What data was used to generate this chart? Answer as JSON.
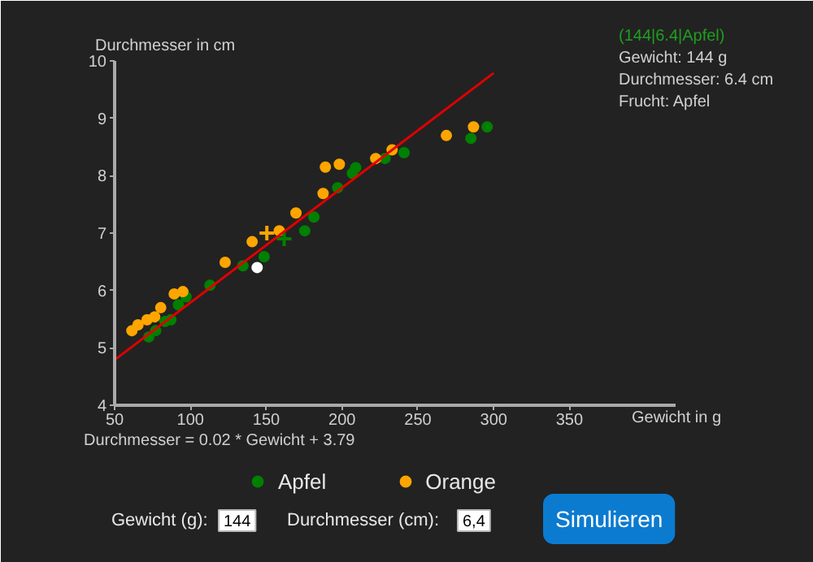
{
  "chart_data": {
    "type": "scatter",
    "xlabel": "Gewicht in g",
    "ylabel": "Durchmesser in cm",
    "xlim": [
      50,
      420
    ],
    "ylim": [
      4,
      10
    ],
    "xticks": [
      50,
      100,
      150,
      200,
      250,
      300,
      350
    ],
    "yticks": [
      4,
      5,
      6,
      7,
      8,
      9,
      10
    ],
    "grid": false,
    "legend": "bottom",
    "marker": "circle",
    "series": [
      {
        "name": "Apfel",
        "color": "#008000",
        "x": [
          72.5,
          77.1,
          83.2,
          87.1,
          92.1,
          97.1,
          112.9,
          134.6,
          148.6,
          175.4,
          181.4,
          197.1,
          206.8,
          209,
          228.3,
          240.9,
          285,
          295.7
        ],
        "values": [
          5.19,
          5.3,
          5.46,
          5.49,
          5.75,
          5.89,
          6.09,
          6.43,
          6.59,
          7.04,
          7.28,
          7.79,
          8.04,
          8.14,
          8.3,
          8.4,
          8.65,
          8.85
        ]
      },
      {
        "name": "Orange",
        "color": "#ffa500",
        "x": [
          61.4,
          65.4,
          71.4,
          76.4,
          80.4,
          89.3,
          95,
          122.9,
          140.7,
          158.6,
          169.6,
          187.5,
          189,
          198.2,
          222.2,
          233,
          268.8,
          286.7
        ],
        "values": [
          5.3,
          5.4,
          5.49,
          5.54,
          5.7,
          5.94,
          5.98,
          6.49,
          6.85,
          7.04,
          7.35,
          7.69,
          8.15,
          8.2,
          8.3,
          8.45,
          8.7,
          8.85
        ]
      },
      {
        "color": "#008000",
        "marker": "cross",
        "x": [
          161.8
        ],
        "values": [
          6.9
        ]
      },
      {
        "color": "#ffa500",
        "marker": "cross",
        "x": [
          150.4
        ],
        "values": [
          7.0
        ]
      },
      {
        "type": "line",
        "marker": "none",
        "color": "#e00000",
        "x": [
          50,
          300
        ],
        "values": [
          4.79,
          9.79
        ]
      },
      {
        "color": "#ffffff",
        "x": [
          144
        ],
        "values": [
          6.4
        ]
      }
    ],
    "annotations": [
      "(144|6.4|Apfel)",
      "Gewicht: 144 g",
      "Durchmesser: 6.4 cm",
      "Frucht: Apfel",
      "Durchmesser = 0.02 * Gewicht + 3.79",
      "Gewicht (g):",
      "144",
      "Durchmesser (cm):",
      "6,4",
      "Simulieren"
    ]
  }
}
